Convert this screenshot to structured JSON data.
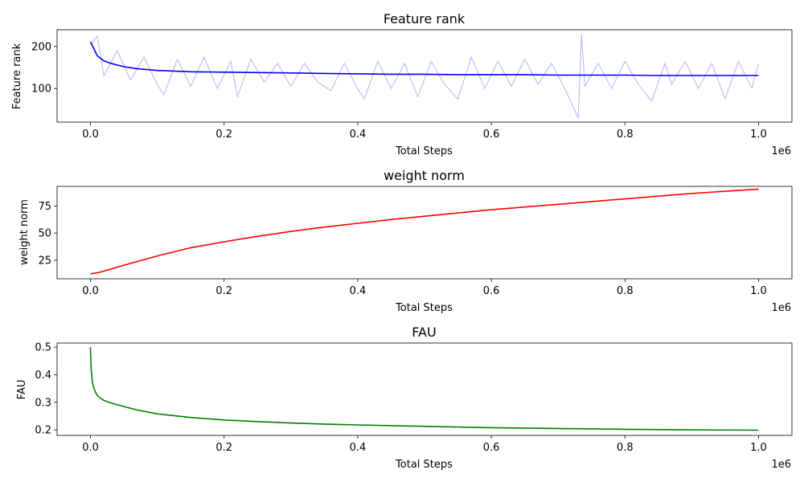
{
  "figure": {
    "background": "#ffffff"
  },
  "chart_data": [
    {
      "id": "feature-rank",
      "type": "line",
      "title": "Feature rank",
      "xlabel": "Total Steps",
      "ylabel": "Feature rank",
      "x_offset_label": "1e6",
      "xlim": [
        -0.05,
        1.05
      ],
      "ylim": [
        20,
        240
      ],
      "xticks": [
        0.0,
        0.2,
        0.4,
        0.6,
        0.8,
        1.0
      ],
      "xtick_labels": [
        "0.0",
        "0.2",
        "0.4",
        "0.6",
        "0.8",
        "1.0"
      ],
      "yticks": [
        100,
        200
      ],
      "ytick_labels": [
        "100",
        "200"
      ],
      "grid": false,
      "series": [
        {
          "role": "smoothed",
          "color": "#0000ff",
          "x": [
            0.0,
            0.005,
            0.01,
            0.02,
            0.03,
            0.05,
            0.07,
            0.1,
            0.15,
            0.2,
            0.25,
            0.3,
            0.35,
            0.4,
            0.45,
            0.5,
            0.55,
            0.6,
            0.65,
            0.7,
            0.75,
            0.8,
            0.85,
            0.9,
            0.95,
            1.0
          ],
          "y": [
            211,
            195,
            178,
            166,
            160,
            152,
            147,
            143,
            140,
            139,
            138,
            137,
            136,
            135,
            134,
            134,
            133,
            133,
            133,
            132,
            132,
            132,
            131,
            131,
            131,
            131
          ]
        },
        {
          "role": "raw",
          "color": "#0000ff",
          "opacity": 0.3,
          "x": [
            0.0,
            0.01,
            0.02,
            0.04,
            0.06,
            0.08,
            0.1,
            0.11,
            0.13,
            0.15,
            0.17,
            0.19,
            0.21,
            0.22,
            0.24,
            0.26,
            0.28,
            0.3,
            0.32,
            0.34,
            0.36,
            0.38,
            0.4,
            0.41,
            0.43,
            0.45,
            0.47,
            0.49,
            0.51,
            0.53,
            0.55,
            0.57,
            0.59,
            0.61,
            0.63,
            0.65,
            0.67,
            0.69,
            0.71,
            0.73,
            0.735,
            0.74,
            0.76,
            0.78,
            0.8,
            0.82,
            0.84,
            0.86,
            0.87,
            0.89,
            0.91,
            0.93,
            0.95,
            0.97,
            0.99,
            1.0
          ],
          "y": [
            205,
            225,
            130,
            190,
            120,
            175,
            110,
            85,
            170,
            105,
            175,
            100,
            165,
            80,
            170,
            115,
            160,
            105,
            160,
            115,
            95,
            160,
            100,
            75,
            165,
            100,
            160,
            80,
            165,
            110,
            75,
            175,
            100,
            165,
            105,
            170,
            110,
            160,
            100,
            30,
            230,
            105,
            160,
            100,
            165,
            110,
            70,
            160,
            110,
            165,
            100,
            160,
            75,
            165,
            100,
            160
          ]
        }
      ]
    },
    {
      "id": "weight-norm",
      "type": "line",
      "title": "weight norm",
      "xlabel": "Total Steps",
      "ylabel": "weight norm",
      "x_offset_label": "1e6",
      "xlim": [
        -0.05,
        1.05
      ],
      "ylim": [
        8,
        93
      ],
      "xticks": [
        0.0,
        0.2,
        0.4,
        0.6,
        0.8,
        1.0
      ],
      "xtick_labels": [
        "0.0",
        "0.2",
        "0.4",
        "0.6",
        "0.8",
        "1.0"
      ],
      "yticks": [
        25,
        50,
        75
      ],
      "ytick_labels": [
        "25",
        "50",
        "75"
      ],
      "grid": false,
      "series": [
        {
          "color": "#ff0000",
          "x": [
            0.0,
            0.01,
            0.02,
            0.05,
            0.1,
            0.15,
            0.2,
            0.25,
            0.3,
            0.35,
            0.4,
            0.45,
            0.5,
            0.55,
            0.6,
            0.65,
            0.7,
            0.75,
            0.8,
            0.85,
            0.9,
            0.95,
            1.0
          ],
          "y": [
            12.5,
            13.5,
            15,
            20.5,
            29,
            36.5,
            42,
            47,
            51.5,
            55.5,
            59,
            62.5,
            65.5,
            68.5,
            71.5,
            74,
            76.5,
            79,
            81.5,
            84,
            86.5,
            88.5,
            90.5
          ]
        }
      ]
    },
    {
      "id": "fau",
      "type": "line",
      "title": "FAU",
      "xlabel": "Total Steps",
      "ylabel": "FAU",
      "x_offset_label": "1e6",
      "xlim": [
        -0.05,
        1.05
      ],
      "ylim": [
        0.18,
        0.515
      ],
      "xticks": [
        0.0,
        0.2,
        0.4,
        0.6,
        0.8,
        1.0
      ],
      "xtick_labels": [
        "0.0",
        "0.2",
        "0.4",
        "0.6",
        "0.8",
        "1.0"
      ],
      "yticks": [
        0.2,
        0.3,
        0.4,
        0.5
      ],
      "ytick_labels": [
        "0.2",
        "0.3",
        "0.4",
        "0.5"
      ],
      "grid": false,
      "series": [
        {
          "color": "#008000",
          "x": [
            0.0,
            0.001,
            0.003,
            0.006,
            0.01,
            0.015,
            0.02,
            0.03,
            0.05,
            0.07,
            0.1,
            0.15,
            0.2,
            0.25,
            0.3,
            0.35,
            0.4,
            0.5,
            0.6,
            0.7,
            0.8,
            0.9,
            1.0
          ],
          "y": [
            0.5,
            0.42,
            0.37,
            0.345,
            0.325,
            0.315,
            0.307,
            0.298,
            0.285,
            0.272,
            0.258,
            0.245,
            0.236,
            0.23,
            0.225,
            0.221,
            0.218,
            0.213,
            0.208,
            0.205,
            0.202,
            0.2,
            0.199
          ]
        }
      ]
    }
  ]
}
